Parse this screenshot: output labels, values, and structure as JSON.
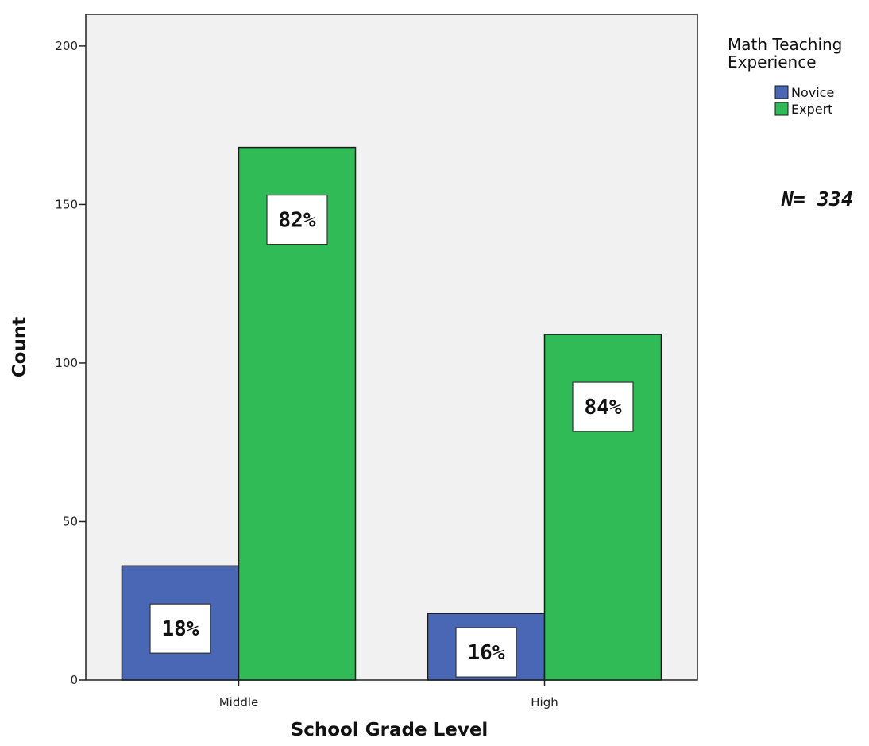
{
  "chart_data": {
    "type": "bar",
    "title": "",
    "xlabel": "School Grade Level",
    "ylabel": "Count",
    "categories": [
      "Middle",
      "High"
    ],
    "series": [
      {
        "name": "Novice",
        "color": "#4a67b5",
        "values": [
          36,
          21
        ],
        "data_labels": [
          "18%",
          "16%"
        ]
      },
      {
        "name": "Expert",
        "color": "#31bb56",
        "values": [
          168,
          109
        ],
        "data_labels": [
          "82%",
          "84%"
        ]
      }
    ],
    "ylim": [
      0,
      210
    ],
    "yticks": [
      0,
      50,
      100,
      150,
      200
    ],
    "grid": false,
    "plot_background": "#f1f1f1",
    "legend": {
      "title_lines": [
        "Math Teaching",
        "Experience"
      ],
      "position": "top-right, outside plot"
    },
    "annotation": "N= 334"
  }
}
